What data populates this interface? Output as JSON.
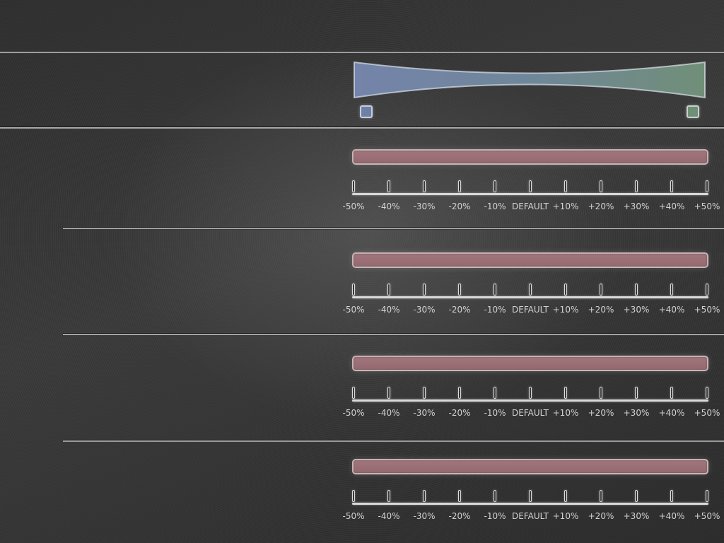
{
  "balance": {
    "left_color": "#6f80a6",
    "right_color": "#6f8f76",
    "left_swatch_label": "",
    "right_swatch_label": ""
  },
  "sliders": [
    {
      "value_percent": 0,
      "scale_labels": [
        "-50%",
        "-40%",
        "-30%",
        "-20%",
        "-10%",
        "DEFAULT",
        "+10%",
        "+20%",
        "+30%",
        "+40%",
        "+50%"
      ]
    },
    {
      "value_percent": 0,
      "scale_labels": [
        "-50%",
        "-40%",
        "-30%",
        "-20%",
        "-10%",
        "DEFAULT",
        "+10%",
        "+20%",
        "+30%",
        "+40%",
        "+50%"
      ]
    },
    {
      "value_percent": 0,
      "scale_labels": [
        "-50%",
        "-40%",
        "-30%",
        "-20%",
        "-10%",
        "DEFAULT",
        "+10%",
        "+20%",
        "+30%",
        "+40%",
        "+50%"
      ]
    },
    {
      "value_percent": 0,
      "scale_labels": [
        "-50%",
        "-40%",
        "-30%",
        "-20%",
        "-10%",
        "DEFAULT",
        "+10%",
        "+20%",
        "+30%",
        "+40%",
        "+50%"
      ]
    }
  ],
  "colors": {
    "slider_fill": "#9c7076",
    "scale": "#d9d9d9",
    "label_text": "#d2d2d2"
  }
}
